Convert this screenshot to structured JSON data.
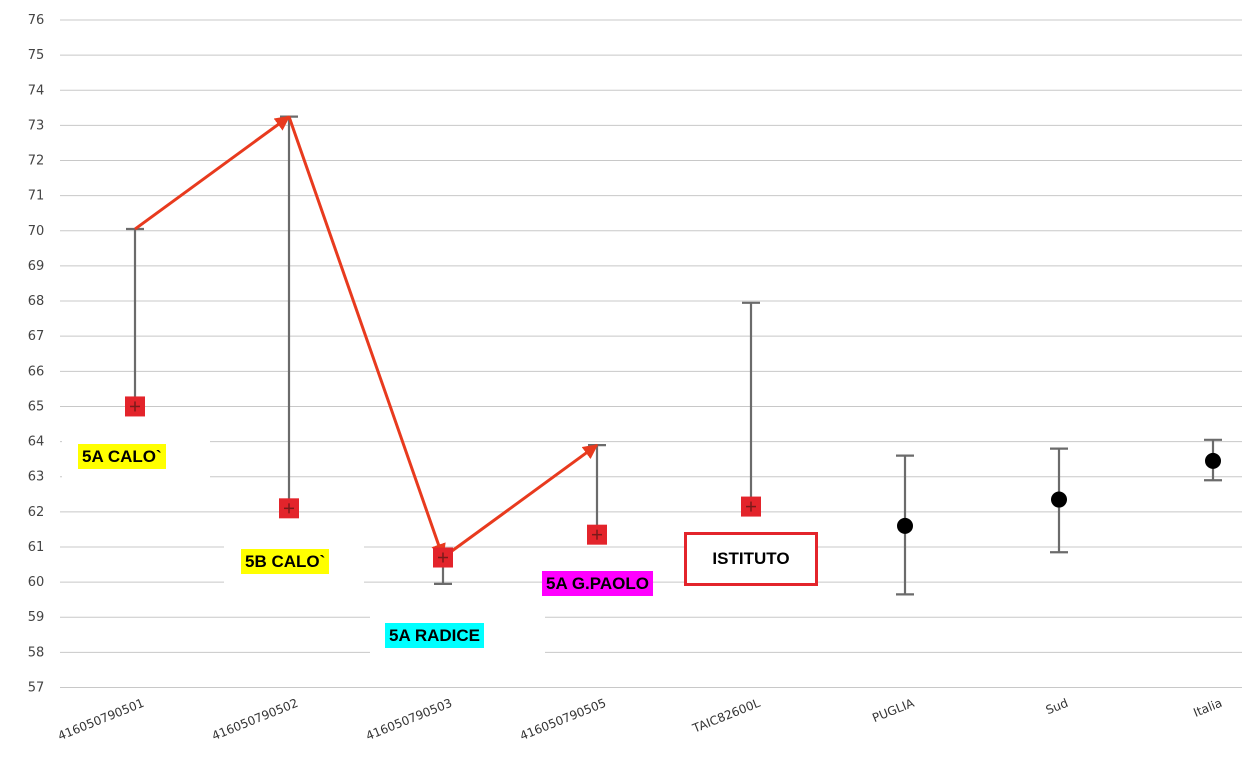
{
  "chart_data": {
    "type": "scatter",
    "subtype": "error-bar",
    "ylim": [
      57,
      76
    ],
    "yticks": [
      "57",
      "58",
      "59",
      "60",
      "61",
      "62",
      "63",
      "64",
      "65",
      "66",
      "67",
      "68",
      "69",
      "70",
      "71",
      "72",
      "73",
      "74",
      "75",
      "76"
    ],
    "grid": true,
    "categories": [
      "416050790501",
      "416050790502",
      "416050790503",
      "416050790505",
      "TAIC82600L",
      "PUGLIA",
      "Sud",
      "Italia"
    ],
    "points": [
      {
        "category": "416050790501",
        "value": 65.0,
        "low": 65.0,
        "high": 70.05,
        "marker": "square",
        "color": "#e3242b"
      },
      {
        "category": "416050790502",
        "value": 62.1,
        "low": 62.1,
        "high": 73.25,
        "marker": "square",
        "color": "#e3242b"
      },
      {
        "category": "416050790503",
        "value": 60.7,
        "low": 59.95,
        "high": 60.7,
        "marker": "square",
        "color": "#e3242b"
      },
      {
        "category": "416050790505",
        "value": 61.35,
        "low": 61.35,
        "high": 63.9,
        "marker": "square",
        "color": "#e3242b"
      },
      {
        "category": "TAIC82600L",
        "value": 62.15,
        "low": 62.15,
        "high": 67.95,
        "marker": "square",
        "color": "#e3242b"
      },
      {
        "category": "PUGLIA",
        "value": 61.6,
        "low": 59.65,
        "high": 63.6,
        "marker": "circle",
        "color": "#000000"
      },
      {
        "category": "Sud",
        "value": 62.35,
        "low": 60.85,
        "high": 63.8,
        "marker": "circle",
        "color": "#000000"
      },
      {
        "category": "Italia",
        "value": 63.45,
        "low": 62.9,
        "high": 64.05,
        "marker": "circle",
        "color": "#000000"
      }
    ],
    "trend_arrows": {
      "color": "#e83a1e",
      "path": [
        {
          "category": "416050790501",
          "value": 70.05
        },
        {
          "category": "416050790502",
          "value": 73.25
        },
        {
          "category": "416050790503",
          "value": 60.7
        },
        {
          "category": "416050790505",
          "value": 63.9
        }
      ]
    },
    "annotations": [
      {
        "text": "5A   CALO`",
        "bg": "#ffff00"
      },
      {
        "text": "5B   CALO`",
        "bg": "#ffff00"
      },
      {
        "text": "5A   RADICE",
        "bg": "#00ffff"
      },
      {
        "text": "5A  G.PAOLO",
        "bg": "#ff00ff"
      },
      {
        "text": "ISTITUTO",
        "bg": "#ffffff",
        "border": "#e3242b"
      }
    ]
  }
}
